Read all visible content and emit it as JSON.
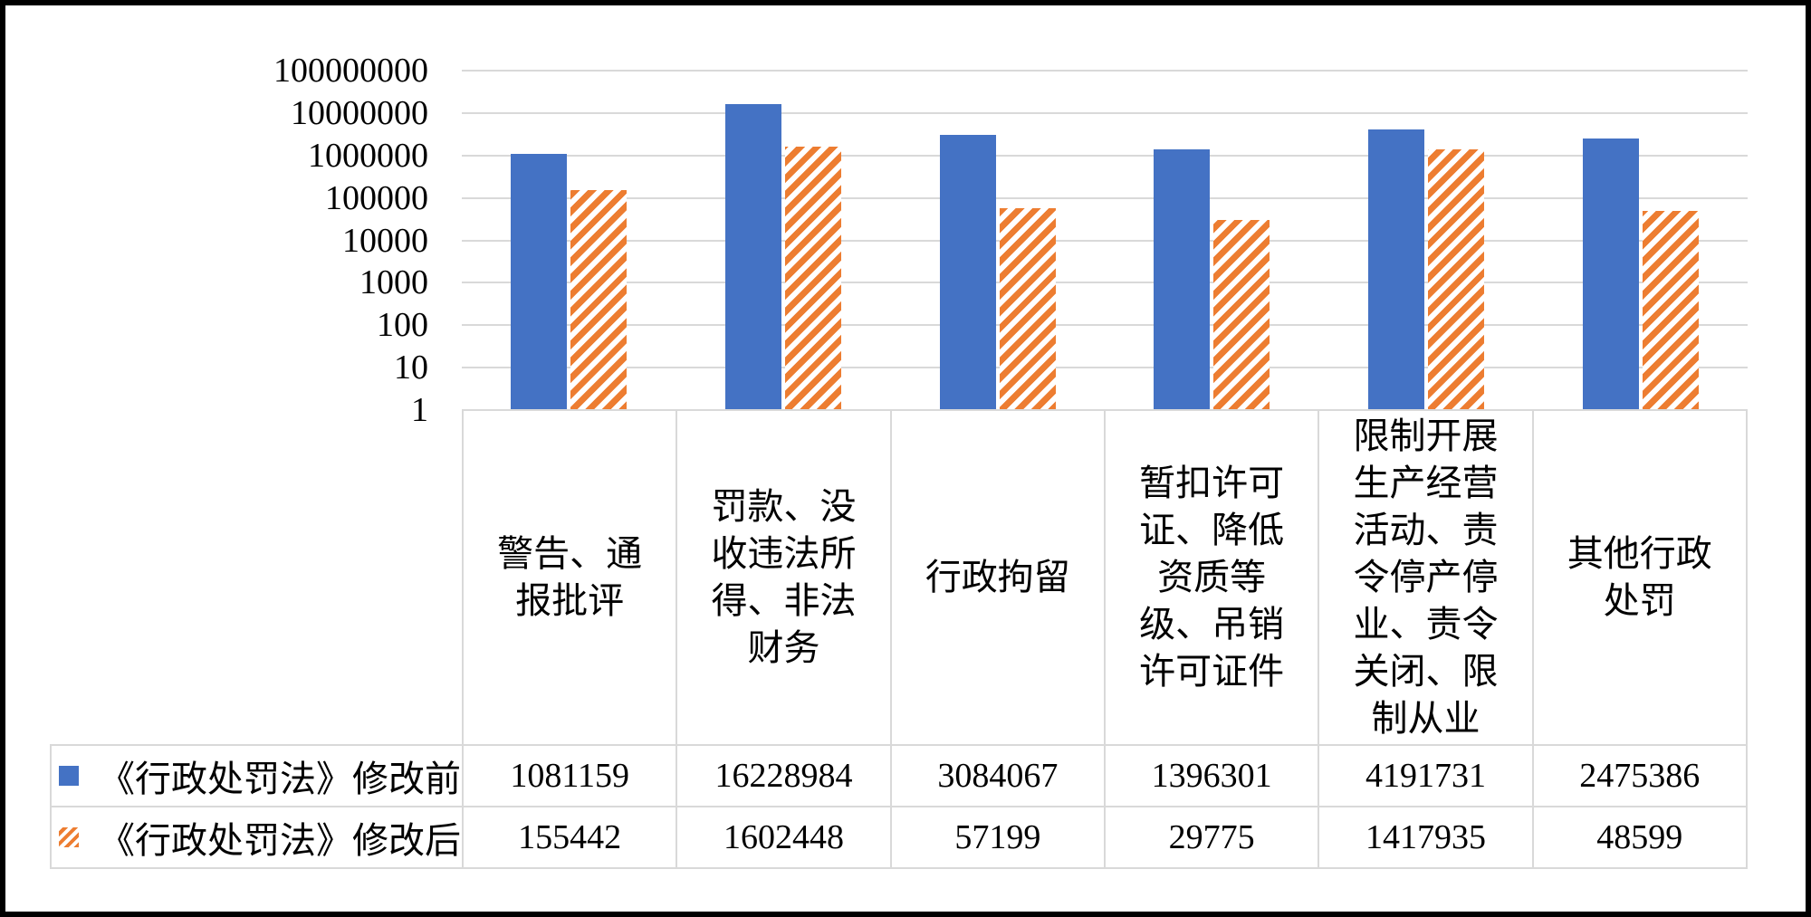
{
  "colors": {
    "series_before": "#4472C4",
    "series_after": "#ED7D31",
    "gridline": "#D9D9D9",
    "table_border": "#D9D9D9",
    "frame_border": "#000000",
    "background": "#ffffff",
    "text": "#000000"
  },
  "chart_data": {
    "type": "bar",
    "title": "",
    "xlabel": "",
    "ylabel": "",
    "y_scale": "log10",
    "ylim": [
      1,
      100000000
    ],
    "yticks": [
      100000000,
      10000000,
      1000000,
      100000,
      10000,
      1000,
      100,
      10,
      1
    ],
    "grid": true,
    "legend_position": "left-of-data-table-rows",
    "categories": [
      "警告、通\n报批评",
      "罚款、没\n收违法所\n得、非法\n财务",
      "行政拘留",
      "暂扣许可\n证、降低\n资质等\n级、吊销\n许可证件",
      "限制开展\n生产经营\n活动、责\n令停产停\n业、责令\n关闭、限\n制从业",
      "其他行政\n处罚"
    ],
    "series": [
      {
        "name": "《行政处罚法》修改前",
        "marker_style": "solid",
        "color": "#4472C4",
        "values": [
          1081159,
          16228984,
          3084067,
          1396301,
          4191731,
          2475386
        ]
      },
      {
        "name": "《行政处罚法》修改后",
        "marker_style": "diagonal-hatch",
        "color": "#ED7D31",
        "values": [
          155442,
          1602448,
          57199,
          29775,
          1417935,
          48599
        ]
      }
    ]
  }
}
